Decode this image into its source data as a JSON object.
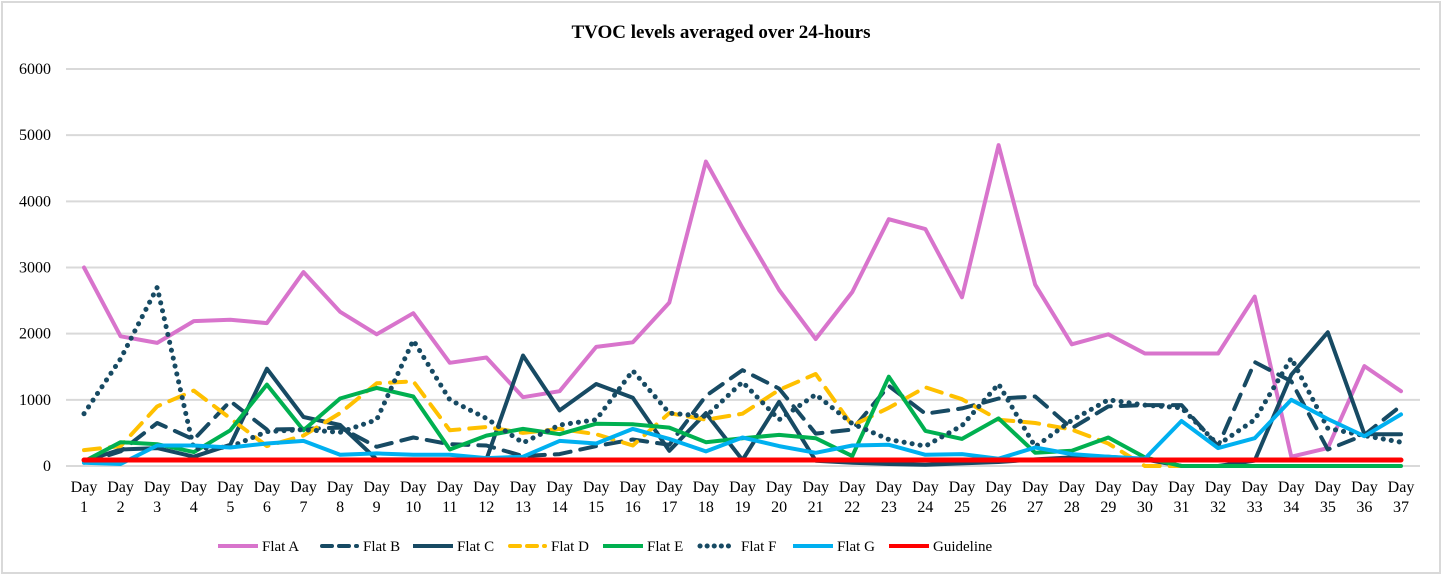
{
  "chart_data": {
    "type": "line",
    "title": "TVOC levels averaged over 24-hours",
    "xlabel": "",
    "ylabel": "",
    "ylim": [
      0,
      6000
    ],
    "yticks": [
      "0",
      "1000",
      "2000",
      "3000",
      "4000",
      "5000",
      "6000"
    ],
    "ytick_values": [
      0,
      1000,
      2000,
      3000,
      4000,
      5000,
      6000
    ],
    "grid": true,
    "legend_position": "bottom",
    "categories": [
      [
        "Day",
        "1"
      ],
      [
        "Day",
        "2"
      ],
      [
        "Day",
        "3"
      ],
      [
        "Day",
        "4"
      ],
      [
        "Day",
        "5"
      ],
      [
        "Day",
        "6"
      ],
      [
        "Day",
        "7"
      ],
      [
        "Day",
        "8"
      ],
      [
        "Day",
        "9"
      ],
      [
        "Day",
        "10"
      ],
      [
        "Day",
        "11"
      ],
      [
        "Day",
        "12"
      ],
      [
        "Day",
        "13"
      ],
      [
        "Day",
        "14"
      ],
      [
        "Day",
        "15"
      ],
      [
        "Day",
        "16"
      ],
      [
        "Day",
        "17"
      ],
      [
        "Day",
        "18"
      ],
      [
        "Day",
        "19"
      ],
      [
        "Day",
        "20"
      ],
      [
        "Day",
        "21"
      ],
      [
        "Day",
        "22"
      ],
      [
        "Day",
        "23"
      ],
      [
        "Day",
        "24"
      ],
      [
        "Day",
        "25"
      ],
      [
        "Day",
        "26"
      ],
      [
        "Day",
        "27"
      ],
      [
        "Day",
        "28"
      ],
      [
        "Day",
        "29"
      ],
      [
        "Day",
        "30"
      ],
      [
        "Day",
        "31"
      ],
      [
        "Day",
        "32"
      ],
      [
        "Day",
        "33"
      ],
      [
        "Day",
        "34"
      ],
      [
        "Day",
        "35"
      ],
      [
        "Day",
        "36"
      ],
      [
        "Day",
        "37"
      ]
    ],
    "series": [
      {
        "name": "Flat A",
        "color": "#d874cc",
        "style": "solid",
        "values": [
          3000,
          1960,
          1860,
          2190,
          2210,
          2160,
          2930,
          2330,
          1990,
          2310,
          1560,
          1640,
          1040,
          1130,
          1800,
          1870,
          2470,
          4600,
          3600,
          2660,
          1920,
          2630,
          3730,
          3580,
          2550,
          4850,
          2740,
          1840,
          1990,
          1700,
          1700,
          1700,
          2560,
          140,
          270,
          1510,
          1130
        ]
      },
      {
        "name": "Flat B",
        "color": "#174a63",
        "style": "dash",
        "values": [
          50,
          220,
          650,
          400,
          980,
          550,
          560,
          580,
          290,
          430,
          330,
          310,
          150,
          180,
          300,
          400,
          320,
          1060,
          1450,
          1170,
          490,
          550,
          1210,
          790,
          870,
          1020,
          1050,
          570,
          900,
          920,
          920,
          300,
          1570,
          1280,
          250,
          470,
          910
        ]
      },
      {
        "name": "Flat C",
        "color": "#174a63",
        "style": "solid",
        "values": [
          70,
          250,
          270,
          140,
          320,
          1470,
          740,
          620,
          100,
          100,
          100,
          100,
          1670,
          840,
          1240,
          1030,
          230,
          800,
          90,
          970,
          80,
          50,
          30,
          20,
          40,
          60,
          100,
          130,
          140,
          100,
          0,
          0,
          80,
          1380,
          2020,
          480,
          480
        ]
      },
      {
        "name": "Flat D",
        "color": "#ffc000",
        "style": "dash",
        "values": [
          240,
          300,
          900,
          1140,
          720,
          300,
          460,
          800,
          1250,
          1280,
          540,
          590,
          500,
          560,
          480,
          310,
          800,
          700,
          790,
          1150,
          1390,
          610,
          880,
          1190,
          1010,
          700,
          650,
          550,
          340,
          0,
          0,
          0,
          0,
          0,
          0,
          0,
          0
        ]
      },
      {
        "name": "Flat E",
        "color": "#00b050",
        "style": "solid",
        "values": [
          70,
          360,
          330,
          210,
          540,
          1230,
          540,
          1020,
          1180,
          1050,
          250,
          460,
          560,
          480,
          640,
          630,
          580,
          360,
          420,
          470,
          420,
          150,
          1350,
          530,
          410,
          720,
          200,
          230,
          430,
          130,
          0,
          0,
          0,
          0,
          0,
          0,
          0
        ]
      },
      {
        "name": "Flat F",
        "color": "#174a63",
        "style": "dot",
        "values": [
          790,
          1620,
          2700,
          260,
          290,
          520,
          550,
          510,
          700,
          1900,
          1000,
          720,
          350,
          620,
          700,
          1440,
          800,
          750,
          1270,
          700,
          1080,
          640,
          400,
          300,
          610,
          1240,
          290,
          690,
          1000,
          920,
          880,
          320,
          700,
          1630,
          570,
          460,
          360
        ]
      },
      {
        "name": "Flat G",
        "color": "#00b0f0",
        "style": "solid",
        "values": [
          50,
          30,
          310,
          310,
          280,
          340,
          380,
          170,
          190,
          170,
          170,
          120,
          140,
          380,
          340,
          560,
          410,
          220,
          430,
          300,
          200,
          310,
          320,
          170,
          180,
          110,
          280,
          180,
          140,
          110,
          680,
          270,
          420,
          1000,
          710,
          450,
          780
        ]
      },
      {
        "name": "Guideline",
        "color": "#ff0000",
        "style": "solid",
        "values": [
          90,
          90,
          90,
          90,
          90,
          90,
          90,
          90,
          90,
          90,
          90,
          90,
          90,
          90,
          90,
          90,
          90,
          90,
          90,
          90,
          90,
          90,
          90,
          90,
          90,
          90,
          90,
          90,
          90,
          90,
          90,
          90,
          90,
          90,
          90,
          90,
          90
        ]
      }
    ]
  }
}
